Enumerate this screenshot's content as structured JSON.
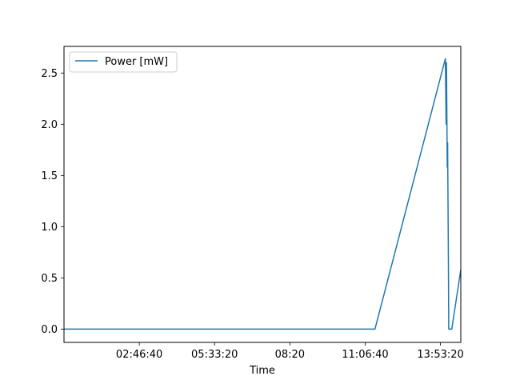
{
  "chart_data": {
    "type": "line",
    "title": "",
    "xlabel": "Time",
    "ylabel": "",
    "x_unit": "seconds",
    "xlim": [
      0,
      52700
    ],
    "ylim": [
      -0.13,
      2.76
    ],
    "x_ticks": [
      {
        "value": 10000,
        "label": "02:46:40"
      },
      {
        "value": 20000,
        "label": "05:33:20"
      },
      {
        "value": 30000,
        "label": "08:20"
      },
      {
        "value": 40000,
        "label": "11:06:40"
      },
      {
        "value": 50000,
        "label": "13:53:20"
      }
    ],
    "y_ticks": [
      {
        "value": 0.0,
        "label": "0.0"
      },
      {
        "value": 0.5,
        "label": "0.5"
      },
      {
        "value": 1.0,
        "label": "1.0"
      },
      {
        "value": 1.5,
        "label": "1.5"
      },
      {
        "value": 2.0,
        "label": "2.0"
      },
      {
        "value": 2.5,
        "label": "2.5"
      }
    ],
    "grid": false,
    "legend_position": "upper left",
    "series": [
      {
        "name": "Power [mW]",
        "color": "#1f77b4",
        "x": [
          0,
          41300,
          50650,
          50750,
          50800,
          50900,
          50950,
          51050,
          51100,
          51250,
          51500,
          52700
        ],
        "y": [
          0.0,
          0.0,
          2.64,
          2.0,
          2.6,
          1.58,
          1.82,
          0.7,
          0.0,
          0.0,
          0.0,
          0.58
        ]
      }
    ]
  }
}
